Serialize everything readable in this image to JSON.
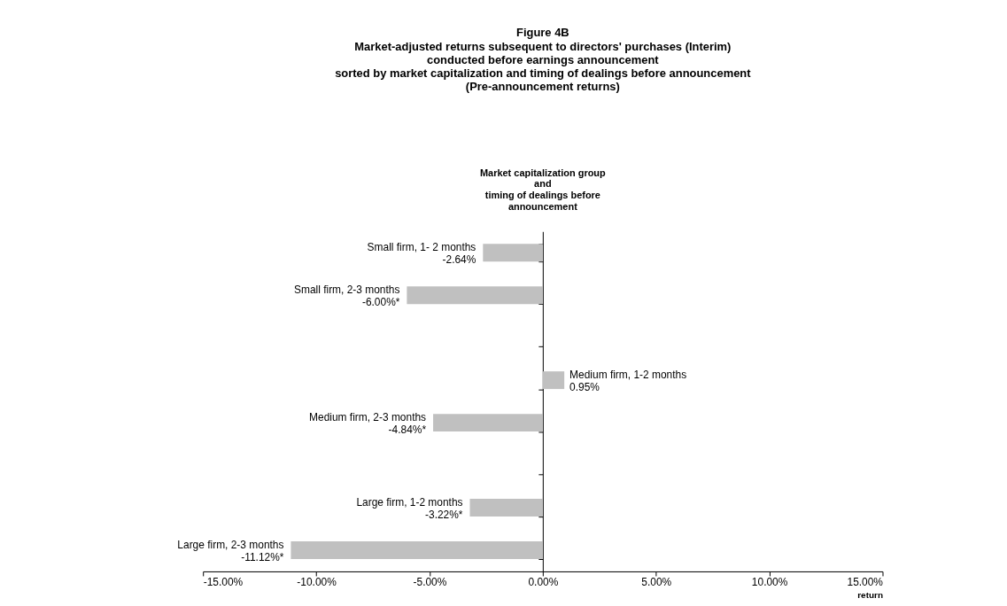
{
  "chart_data": {
    "type": "bar",
    "orientation": "horizontal",
    "title": "Figure 4B",
    "subtitle": "Market-adjusted returns subsequent to directors' purchases (Interim)\nconducted before earnings announcement\nsorted by market capitalization and timing of dealings before announcement\n(Pre-announcement returns)",
    "ylabel": "Market capitalization group\nand\ntiming of dealings before\nannouncement",
    "xlabel": "return",
    "categories": [
      "Small firm, 1- 2 months",
      "Small firm, 2-3 months",
      null,
      "Medium firm, 1-2 months",
      "Medium firm, 2-3 months",
      null,
      "Large firm, 1-2 months",
      "Large firm, 2-3 months"
    ],
    "values": [
      -2.64,
      -6.0,
      null,
      0.95,
      -4.84,
      null,
      -3.22,
      -11.12
    ],
    "value_labels": [
      "-2.64%",
      "-6.00%*",
      null,
      "0.95%",
      "-4.84%*",
      null,
      "-3.22%*",
      "-11.12%*"
    ],
    "color": "#c0c0c0",
    "xlim": [
      -15,
      15
    ],
    "xticks": [
      {
        "value": -15,
        "label": "-15.00%"
      },
      {
        "value": -10,
        "label": "-10.00%"
      },
      {
        "value": -5,
        "label": "-5.00%"
      },
      {
        "value": 0,
        "label": "0.00%"
      },
      {
        "value": 5,
        "label": "5.00%"
      },
      {
        "value": 10,
        "label": "10.00%"
      },
      {
        "value": 15,
        "label": "15.00%"
      }
    ],
    "tick_labels": "x"
  }
}
